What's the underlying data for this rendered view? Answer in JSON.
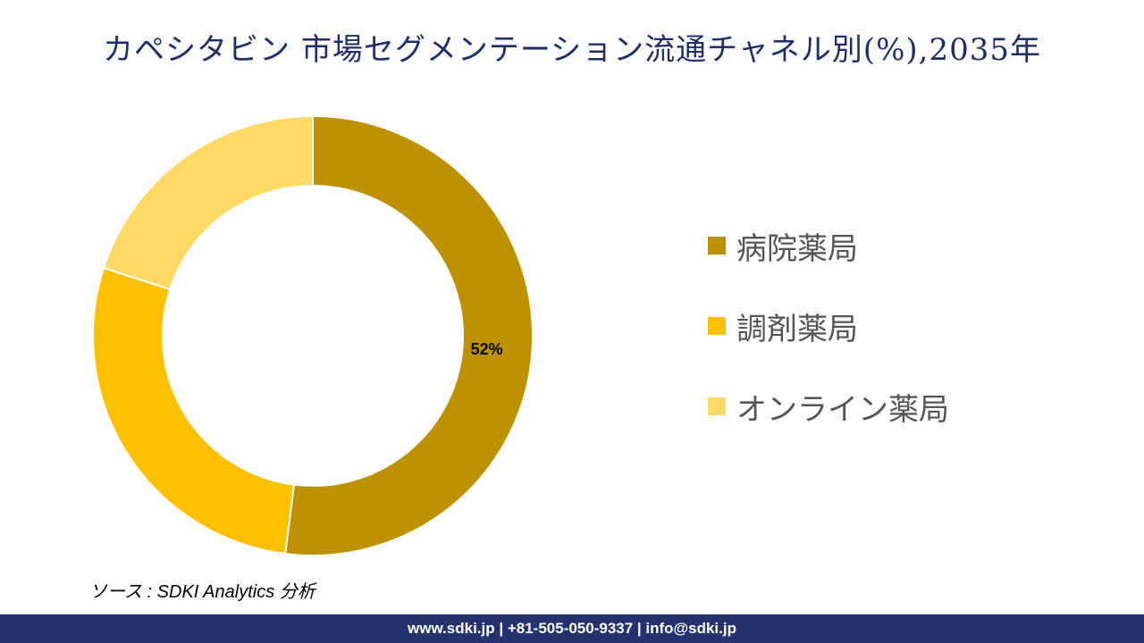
{
  "title": "カペシタビン 市場セグメンテーション流通チャネル別(%),2035年",
  "chart_data": {
    "type": "pie",
    "variant": "donut",
    "categories": [
      "病院薬局",
      "調剤薬局",
      "オンライン薬局"
    ],
    "values": [
      52,
      28,
      20
    ],
    "data_labels": [
      "52%",
      null,
      null
    ],
    "colors": [
      "#bf9000",
      "#ffc000",
      "#ffd966"
    ],
    "legend_position": "right"
  },
  "source": "ソース : SDKI Analytics 分析",
  "footer": "www.sdki.jp | +81-505-050-9337 | info@sdki.jp"
}
